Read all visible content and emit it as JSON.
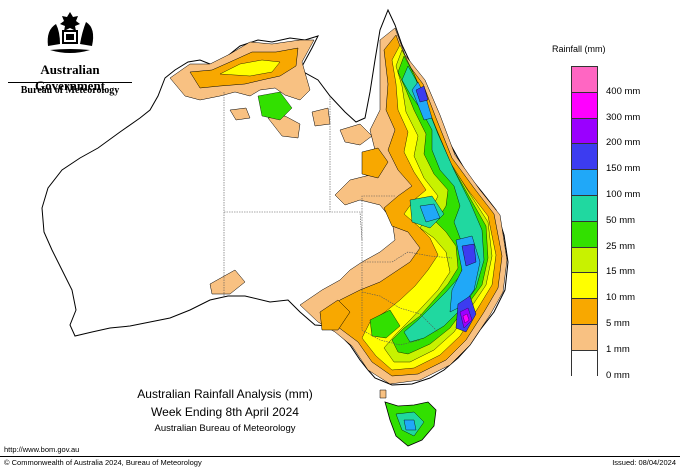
{
  "branding": {
    "government": "Australian Government",
    "agency": "Bureau of Meteorology",
    "crest_icon": "coat-of-arms-icon"
  },
  "map": {
    "title": "Australian Rainfall Analysis (mm)",
    "subtitle": "Week Ending 8th April 2024",
    "credit": "Australian Bureau of Meteorology",
    "colors": {
      "land_dry": "#ffffff",
      "r1": "#f8c182",
      "r5": "#f8a800",
      "r10": "#ffff00",
      "r15": "#c8f200",
      "r25": "#32e000",
      "r50": "#20d8a0",
      "r100": "#20a8f8",
      "r150": "#3c3cf0",
      "r200": "#9a00ff",
      "r300": "#ff00ff",
      "r400": "#ff66c2",
      "coast": "#000000",
      "border": "#555555"
    }
  },
  "legend": {
    "title": "Rainfall (mm)",
    "items": [
      {
        "label": "",
        "color": "#ff66c2"
      },
      {
        "label": "400 mm",
        "color": "#ff00ff"
      },
      {
        "label": "300 mm",
        "color": "#9a00ff"
      },
      {
        "label": "200 mm",
        "color": "#3c3cf0"
      },
      {
        "label": "150 mm",
        "color": "#20a8f8"
      },
      {
        "label": "100 mm",
        "color": "#20d8a0"
      },
      {
        "label": "50 mm",
        "color": "#32e000"
      },
      {
        "label": "25 mm",
        "color": "#c8f200"
      },
      {
        "label": "15 mm",
        "color": "#ffff00"
      },
      {
        "label": "10 mm",
        "color": "#f8a800"
      },
      {
        "label": "5 mm",
        "color": "#f8c182"
      },
      {
        "label": "1 mm",
        "color": "#ffffff"
      },
      {
        "label": "0 mm",
        "color": ""
      }
    ]
  },
  "footer": {
    "url": "http://www.bom.gov.au",
    "copyright": "© Commonwealth of Australia 2024, Bureau of Meteorology",
    "issued": "Issued: 08/04/2024"
  }
}
